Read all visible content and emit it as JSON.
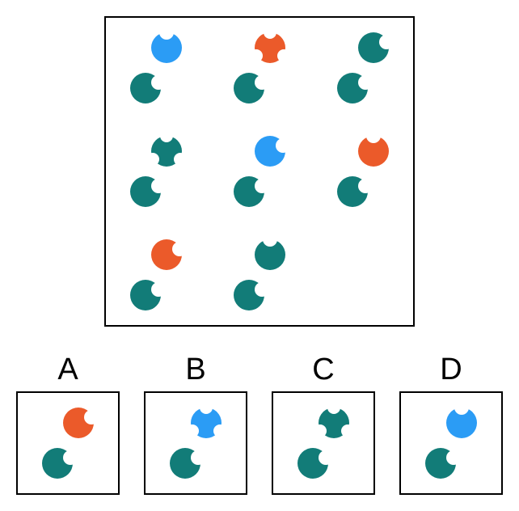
{
  "colors": {
    "teal": "#127c78",
    "blue": "#2b9cf5",
    "orange": "#eb5a2a"
  },
  "matrix": {
    "cells": [
      {
        "top": {
          "shape": "bite-top",
          "color": "blue"
        },
        "bottom": {
          "shape": "bite-top-right",
          "color": "teal"
        }
      },
      {
        "top": {
          "shape": "three-bites",
          "color": "orange"
        },
        "bottom": {
          "shape": "bite-top-right",
          "color": "teal"
        }
      },
      {
        "top": {
          "shape": "bite-top-right",
          "color": "teal"
        },
        "bottom": {
          "shape": "bite-top-right",
          "color": "teal"
        }
      },
      {
        "top": {
          "shape": "three-bites",
          "color": "teal"
        },
        "bottom": {
          "shape": "bite-top-right",
          "color": "teal"
        }
      },
      {
        "top": {
          "shape": "bite-top-right",
          "color": "blue"
        },
        "bottom": {
          "shape": "bite-top-right",
          "color": "teal"
        }
      },
      {
        "top": {
          "shape": "bite-top",
          "color": "orange"
        },
        "bottom": {
          "shape": "bite-top-right",
          "color": "teal"
        }
      },
      {
        "top": {
          "shape": "bite-top-right",
          "color": "orange"
        },
        "bottom": {
          "shape": "bite-top-right",
          "color": "teal"
        }
      },
      {
        "top": {
          "shape": "bite-top",
          "color": "teal"
        },
        "bottom": {
          "shape": "bite-top-right",
          "color": "teal"
        }
      }
    ]
  },
  "options": [
    {
      "label": "A",
      "top": {
        "shape": "bite-top-right",
        "color": "orange"
      },
      "bottom": {
        "shape": "bite-top-right",
        "color": "teal"
      }
    },
    {
      "label": "B",
      "top": {
        "shape": "three-bites",
        "color": "blue"
      },
      "bottom": {
        "shape": "bite-top-right",
        "color": "teal"
      }
    },
    {
      "label": "C",
      "top": {
        "shape": "three-bites",
        "color": "teal"
      },
      "bottom": {
        "shape": "bite-top-right",
        "color": "teal"
      }
    },
    {
      "label": "D",
      "top": {
        "shape": "bite-top",
        "color": "blue"
      },
      "bottom": {
        "shape": "bite-top-right",
        "color": "teal"
      }
    }
  ]
}
